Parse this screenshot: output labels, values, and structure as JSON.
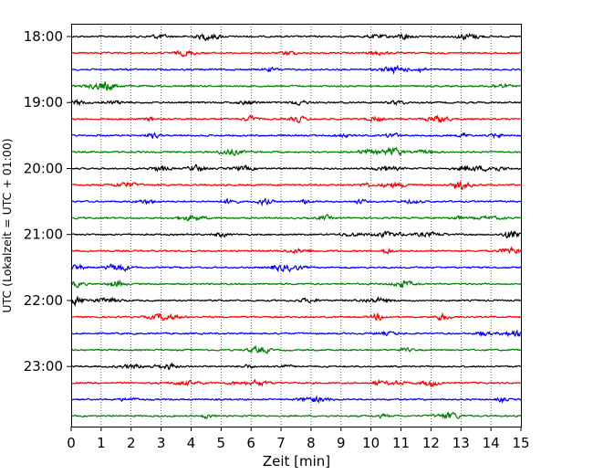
{
  "chart_data": {
    "type": "line",
    "title": "",
    "xlabel": "Zeit  [min]",
    "ylabel": "UTC (Lokalzeit = UTC + 01:00)",
    "xlim": [
      0,
      15
    ],
    "x_ticks": [
      "0",
      "1",
      "2",
      "3",
      "4",
      "5",
      "6",
      "7",
      "8",
      "9",
      "10",
      "11",
      "12",
      "13",
      "14",
      "15"
    ],
    "y_tick_labels": [
      "18:00",
      "19:00",
      "20:00",
      "21:00",
      "22:00",
      "23:00"
    ],
    "grid": "vertical-dotted",
    "trace_minutes": 15,
    "trace_start": "18:00",
    "trace_end": "23:45",
    "traces_per_hour": 4,
    "trace_count": 24,
    "trace_colors": [
      "#000000",
      "#ff0000",
      "#0000ff",
      "#008000"
    ]
  }
}
